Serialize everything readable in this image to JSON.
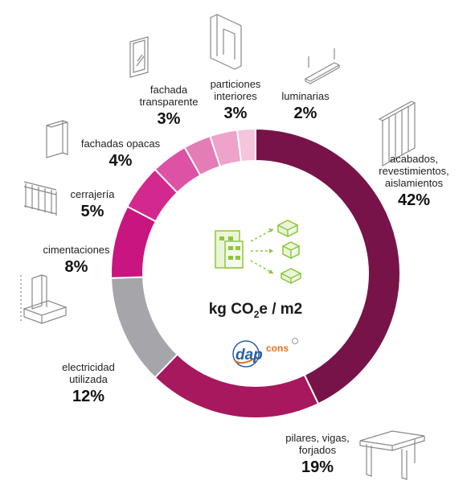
{
  "chart_data": {
    "type": "donut",
    "unit": "%",
    "center_title": {
      "prefix": "kg CO",
      "subscript": "2",
      "suffix": "e / m2"
    },
    "logo_text": "dapcons",
    "slices": [
      {
        "label": "acabados, revestimientos, aislamientos",
        "lines": [
          "acabados,",
          "revestimientos,",
          "aislamientos"
        ],
        "value": 42,
        "value_label": "42%",
        "color": "#78134a"
      },
      {
        "label": "pilares, vigas, forjados",
        "lines": [
          "pilares, vigas,",
          "forjados"
        ],
        "value": 19,
        "value_label": "19%",
        "color": "#a8185e"
      },
      {
        "label": "electricidad utilizada",
        "lines": [
          "electricidad",
          "utilizada"
        ],
        "value": 12,
        "value_label": "12%",
        "color": "#a6a6aa"
      },
      {
        "label": "cimentaciones",
        "lines": [
          "cimentaciones"
        ],
        "value": 8,
        "value_label": "8%",
        "color": "#c9157f"
      },
      {
        "label": "cerrajería",
        "lines": [
          "cerrajería"
        ],
        "value": 5,
        "value_label": "5%",
        "color": "#d3288e"
      },
      {
        "label": "fachadas opacas",
        "lines": [
          "fachadas opacas"
        ],
        "value": 4,
        "value_label": "4%",
        "color": "#dd52a4"
      },
      {
        "label": "fachada transparente",
        "lines": [
          "fachada",
          "transparente"
        ],
        "value": 3,
        "value_label": "3%",
        "color": "#e47cb6"
      },
      {
        "label": "particiones interiores",
        "lines": [
          "particiones",
          "interiores"
        ],
        "value": 3,
        "value_label": "3%",
        "color": "#eda3ca"
      },
      {
        "label": "luminarias",
        "lines": [
          "luminarias"
        ],
        "value": 2,
        "value_label": "2%",
        "color": "#f4c5dd"
      }
    ],
    "colors": {
      "icon_green": "#8cc63f",
      "icon_gray": "#999999",
      "logo_blue": "#2b5fa8",
      "logo_orange": "#e8711f"
    }
  }
}
